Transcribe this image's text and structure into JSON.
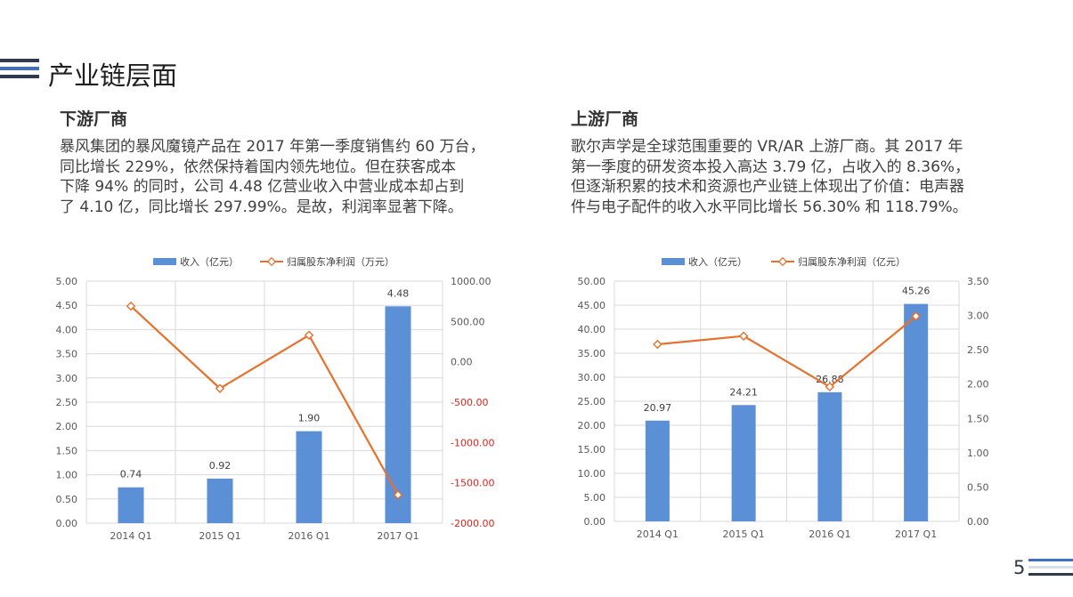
{
  "page": {
    "title": "产业链层面",
    "page_number": "5",
    "colors": {
      "bar": "#5b8fd6",
      "line": "#e8702a",
      "navy": "#2f3a4f",
      "blue": "#3d6fc2",
      "gray": "#d8dde6"
    }
  },
  "left": {
    "heading": "下游厂商",
    "lines": [
      "暴风集团的暴风魔镜产品在 2017 年第一季度销售约 60 万台，",
      "同比增长 229%，依然保持着国内领先地位。但在获客成本",
      "下降 94% 的同时，公司 4.48 亿营业收入中营业成本却占到",
      "了 4.10 亿，同比增长 297.99%。是故，利润率显著下降。"
    ]
  },
  "right": {
    "heading": "上游厂商",
    "lines": [
      "歌尔声学是全球范围重要的 VR/AR 上游厂商。其 2017 年",
      "第一季度的研发资本投入高达 3.79 亿，占收入的 8.36%，",
      "但逐渐积累的技术和资源也产业链上体现出了价值：电声器",
      "件与电子配件的收入水平同比增长 56.30% 和 118.79%。"
    ]
  },
  "chart_data": [
    {
      "type": "bar",
      "categories": [
        "2014 Q1",
        "2015 Q1",
        "2016 Q1",
        "2017 Q1"
      ],
      "series": [
        {
          "name": "收入（亿元）",
          "type": "bar",
          "axis": "left",
          "values": [
            0.74,
            0.92,
            1.9,
            4.48
          ],
          "labels": [
            "0.74",
            "0.92",
            "1.90",
            "4.48"
          ]
        },
        {
          "name": "归属股东净利润（万元）",
          "type": "line",
          "axis": "right",
          "values": [
            690,
            -330,
            330,
            -1650
          ]
        }
      ],
      "y_left": {
        "min": 0,
        "max": 5,
        "step": 0.5,
        "ticks": [
          "0.00",
          "0.50",
          "1.00",
          "1.50",
          "2.00",
          "2.50",
          "3.00",
          "3.50",
          "4.00",
          "4.50",
          "5.00"
        ]
      },
      "y_right": {
        "min": -2000,
        "max": 1000,
        "step": 500,
        "ticks": [
          "-2000.00",
          "-1500.00",
          "-1000.00",
          "-500.00",
          "0.00",
          "500.00",
          "1000.00"
        ]
      },
      "legend_position": "top",
      "grid": true
    },
    {
      "type": "bar",
      "categories": [
        "2014 Q1",
        "2015 Q1",
        "2016 Q1",
        "2017 Q1"
      ],
      "series": [
        {
          "name": "收入（亿元）",
          "type": "bar",
          "axis": "left",
          "values": [
            20.97,
            24.21,
            26.88,
            45.26
          ],
          "labels": [
            "20.97",
            "24.21",
            "26.88",
            "45.26"
          ]
        },
        {
          "name": "归属股东净利润（亿元）",
          "type": "line",
          "axis": "right",
          "values": [
            2.58,
            2.7,
            1.96,
            2.99
          ]
        }
      ],
      "y_left": {
        "min": 0,
        "max": 50,
        "step": 5,
        "ticks": [
          "0.00",
          "5.00",
          "10.00",
          "15.00",
          "20.00",
          "25.00",
          "30.00",
          "35.00",
          "40.00",
          "45.00",
          "50.00"
        ]
      },
      "y_right": {
        "min": 0,
        "max": 3.5,
        "step": 0.5,
        "ticks": [
          "0.00",
          "0.50",
          "1.00",
          "1.50",
          "2.00",
          "2.50",
          "3.00",
          "3.50"
        ]
      },
      "legend_position": "top",
      "grid": true
    }
  ]
}
